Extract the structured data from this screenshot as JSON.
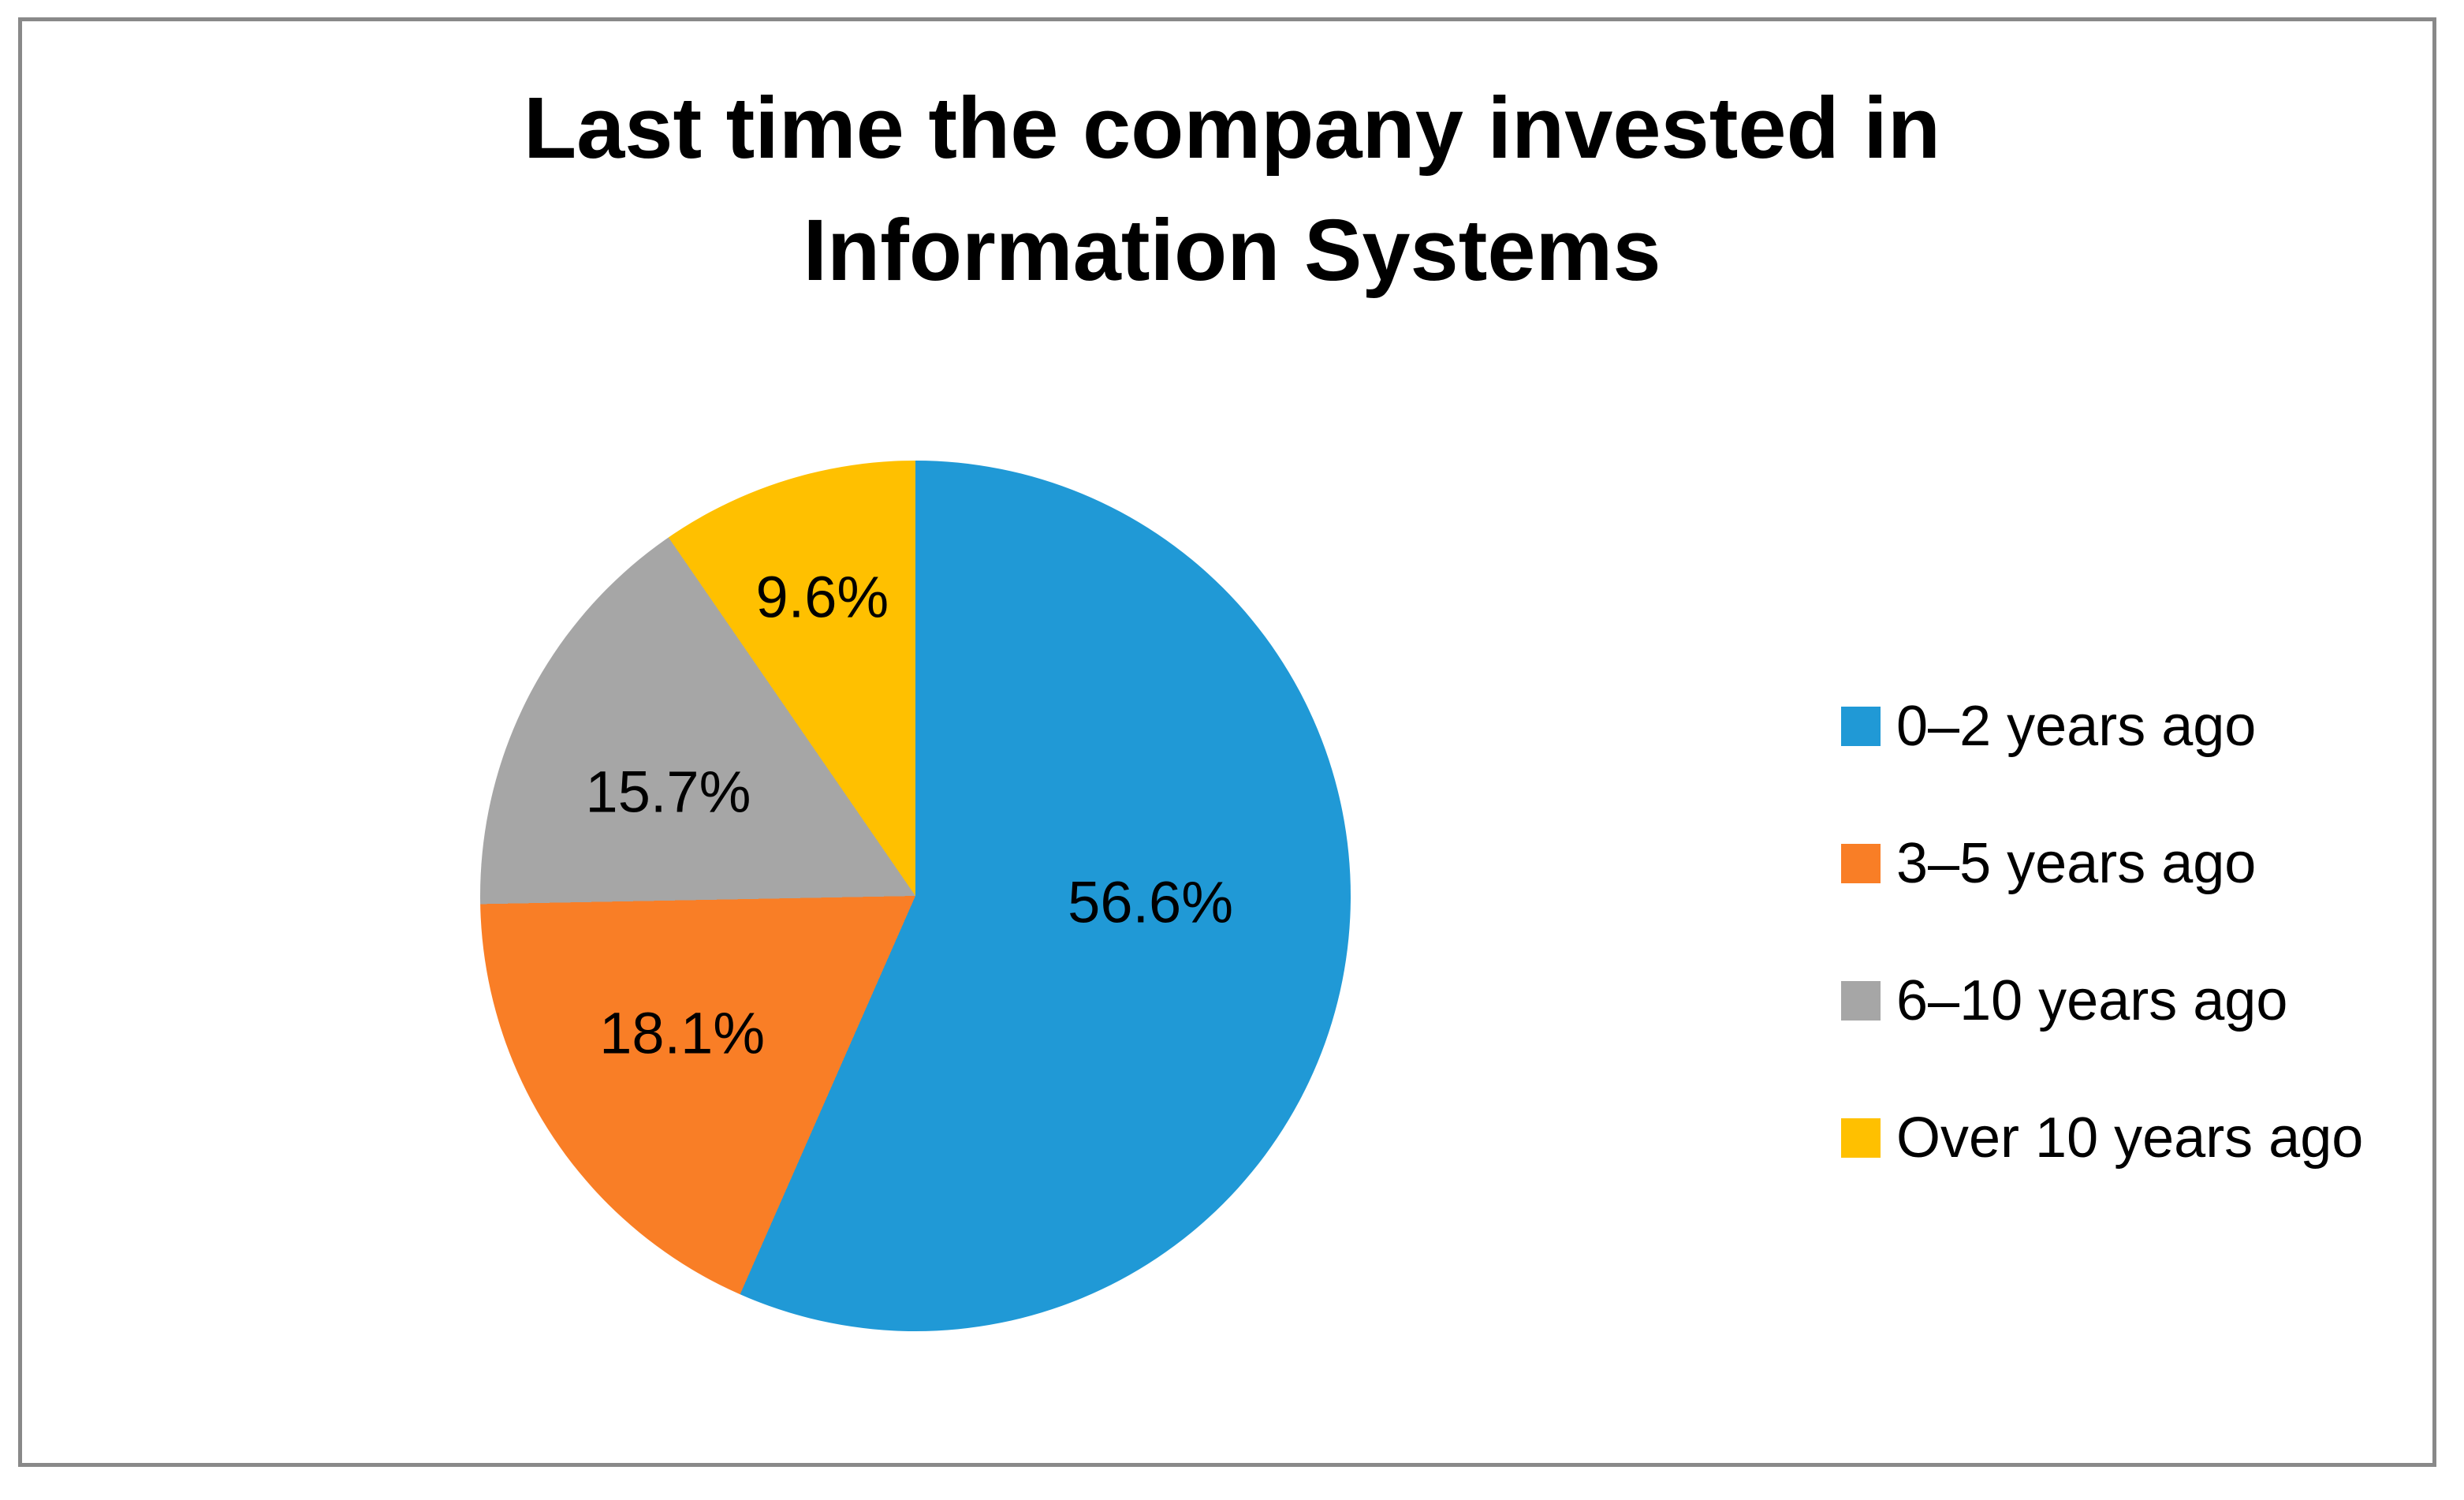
{
  "chart_data": {
    "type": "pie",
    "title": "Last time the company invested in Information Systems",
    "legend_position": "right",
    "start_angle_deg": 0,
    "direction": "clockwise",
    "slices": [
      {
        "label": "0–2 years ago",
        "value": 56.6,
        "display": "56.6%",
        "color": "#2099D6"
      },
      {
        "label": "3–5 years ago",
        "value": 18.1,
        "display": "18.1%",
        "color": "#F97E26"
      },
      {
        "label": "6–10 years ago",
        "value": 15.7,
        "display": "15.7%",
        "color": "#A6A6A6"
      },
      {
        "label": "Over 10 years ago",
        "value": 9.6,
        "display": "9.6%",
        "color": "#FFC000"
      }
    ],
    "label_color": "#000000",
    "title_color": "#000000"
  },
  "frame": {
    "border_color": "#898989",
    "background": "#FFFFFF"
  }
}
